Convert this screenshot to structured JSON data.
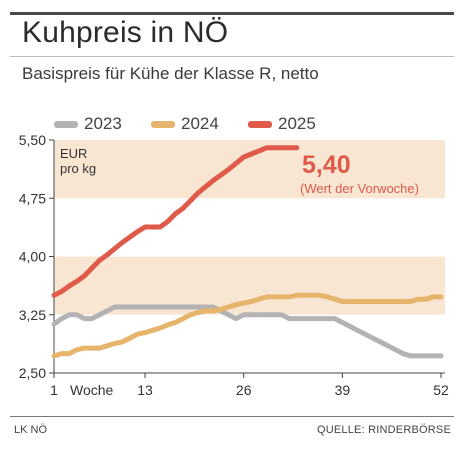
{
  "header": {
    "title": "Kuhpreis in NÖ",
    "subtitle": "Basispreis für Kühe der Klasse R, netto"
  },
  "footer": {
    "source_left": "LK NÖ",
    "source_right": "QUELLE: RINDERBÖRSE"
  },
  "colors": {
    "2023": "#b3b3b3",
    "2024": "#e6b46a",
    "2025": "#e05a4a",
    "band": "#f8e6d3",
    "callout": "#e05a4a"
  },
  "chart_data": {
    "type": "line",
    "title": "Kuhpreis in NÖ",
    "subtitle": "Basispreis für Kühe der Klasse R, netto",
    "xlabel": "Woche",
    "ylabel": "EUR pro kg",
    "y_unit_line1": "EUR",
    "y_unit_line2": "pro kg",
    "xlim": [
      1,
      52
    ],
    "ylim": [
      2.5,
      5.5
    ],
    "yticks": [
      2.5,
      3.25,
      4.0,
      4.75,
      5.5
    ],
    "ytick_labels": [
      "2,50",
      "3,25",
      "4,00",
      "4,75",
      "5,50"
    ],
    "xticks": [
      1,
      13,
      26,
      39,
      52
    ],
    "xtick_labels": [
      "1",
      "13",
      "26",
      "39",
      "52"
    ],
    "bands": [
      [
        3.25,
        4.0
      ],
      [
        4.75,
        5.5
      ]
    ],
    "legend_position": "top",
    "annotation": {
      "value_label": "5,40",
      "note": "(Wert der Vorwoche)"
    },
    "series": [
      {
        "name": "2023",
        "color_key": "2023",
        "x": [
          1,
          2,
          3,
          4,
          5,
          6,
          7,
          8,
          9,
          10,
          11,
          12,
          13,
          14,
          15,
          16,
          17,
          18,
          19,
          20,
          21,
          22,
          23,
          24,
          25,
          26,
          27,
          28,
          29,
          30,
          31,
          32,
          33,
          34,
          35,
          36,
          37,
          38,
          39,
          40,
          41,
          42,
          43,
          44,
          45,
          46,
          47,
          48,
          49,
          50,
          51,
          52
        ],
        "values": [
          3.13,
          3.2,
          3.25,
          3.25,
          3.2,
          3.2,
          3.25,
          3.3,
          3.35,
          3.35,
          3.35,
          3.35,
          3.35,
          3.35,
          3.35,
          3.35,
          3.35,
          3.35,
          3.35,
          3.35,
          3.35,
          3.35,
          3.3,
          3.25,
          3.2,
          3.25,
          3.25,
          3.25,
          3.25,
          3.25,
          3.25,
          3.2,
          3.2,
          3.2,
          3.2,
          3.2,
          3.2,
          3.2,
          3.15,
          3.1,
          3.05,
          3.0,
          2.95,
          2.9,
          2.85,
          2.8,
          2.75,
          2.72,
          2.72,
          2.72,
          2.72,
          2.72
        ]
      },
      {
        "name": "2024",
        "color_key": "2024",
        "x": [
          1,
          2,
          3,
          4,
          5,
          6,
          7,
          8,
          9,
          10,
          11,
          12,
          13,
          14,
          15,
          16,
          17,
          18,
          19,
          20,
          21,
          22,
          23,
          24,
          25,
          26,
          27,
          28,
          29,
          30,
          31,
          32,
          33,
          34,
          35,
          36,
          37,
          38,
          39,
          40,
          41,
          42,
          43,
          44,
          45,
          46,
          47,
          48,
          49,
          50,
          51,
          52
        ],
        "values": [
          2.72,
          2.75,
          2.75,
          2.8,
          2.82,
          2.82,
          2.82,
          2.85,
          2.88,
          2.9,
          2.95,
          3.0,
          3.02,
          3.05,
          3.08,
          3.12,
          3.15,
          3.2,
          3.25,
          3.28,
          3.3,
          3.3,
          3.32,
          3.35,
          3.38,
          3.4,
          3.42,
          3.45,
          3.48,
          3.48,
          3.48,
          3.48,
          3.5,
          3.5,
          3.5,
          3.5,
          3.48,
          3.45,
          3.42,
          3.42,
          3.42,
          3.42,
          3.42,
          3.42,
          3.42,
          3.42,
          3.42,
          3.42,
          3.45,
          3.45,
          3.48,
          3.48
        ]
      },
      {
        "name": "2025",
        "color_key": "2025",
        "x": [
          1,
          2,
          3,
          4,
          5,
          6,
          7,
          8,
          9,
          10,
          11,
          12,
          13,
          14,
          15,
          16,
          17,
          18,
          19,
          20,
          21,
          22,
          23,
          24,
          25,
          26,
          27,
          28,
          29,
          30,
          31,
          32,
          33
        ],
        "values": [
          3.5,
          3.55,
          3.62,
          3.68,
          3.75,
          3.85,
          3.95,
          4.02,
          4.1,
          4.18,
          4.25,
          4.32,
          4.38,
          4.38,
          4.38,
          4.45,
          4.55,
          4.62,
          4.72,
          4.82,
          4.9,
          4.98,
          5.05,
          5.12,
          5.2,
          5.28,
          5.32,
          5.36,
          5.4,
          5.4,
          5.4,
          5.4,
          5.4
        ]
      }
    ]
  }
}
